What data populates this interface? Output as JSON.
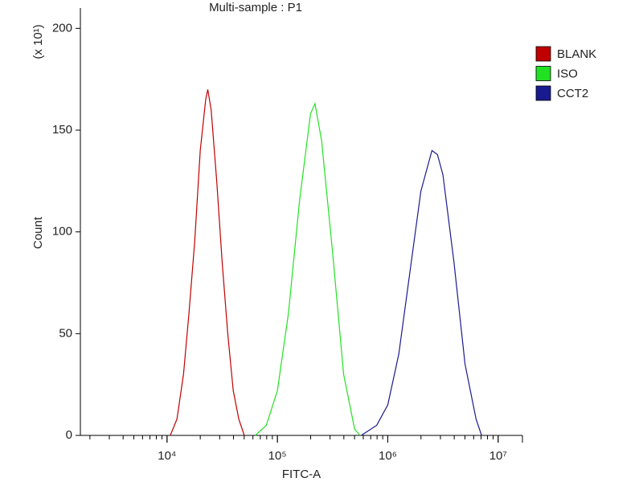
{
  "chart_data": {
    "type": "line",
    "title": "Multi-sample : P1",
    "x_label": "FITC-A",
    "y_label": "Count",
    "y_multiplier": "(x 10¹)",
    "x_log": true,
    "minor_ticks": true,
    "legend": "right",
    "xlim": [
      1640,
      16600000
    ],
    "xticks": [
      {
        "value": 10000,
        "label": "10⁴"
      },
      {
        "value": 100000,
        "label": "10⁵"
      },
      {
        "value": 1000000,
        "label": "10⁶"
      },
      {
        "value": 10000000,
        "label": "10⁷"
      }
    ],
    "ylim": [
      0,
      210
    ],
    "yticks": [
      0,
      50,
      100,
      150,
      200
    ],
    "series": [
      {
        "name": "BLANK",
        "color": "#c00000",
        "x": [
          10700,
          12300,
          14100,
          15800,
          17800,
          20000,
          22400,
          23400,
          25100,
          28200,
          31600,
          35500,
          39800,
          44700,
          50100
        ],
        "values": [
          0,
          8,
          30,
          60,
          95,
          140,
          165,
          170,
          160,
          125,
          85,
          50,
          22,
          8,
          0
        ]
      },
      {
        "name": "ISO",
        "color": "#22e022",
        "x": [
          63100,
          79400,
          100000,
          125900,
          158500,
          199500,
          218800,
          251200,
          316200,
          398100,
          501200,
          562300
        ],
        "values": [
          0,
          5,
          22,
          60,
          115,
          158,
          163,
          145,
          90,
          30,
          3,
          0
        ]
      },
      {
        "name": "CCT2",
        "color": "#1a1a90",
        "x": [
          575000,
          794300,
          1000000,
          1259000,
          1585000,
          1995000,
          2512000,
          2818000,
          3162000,
          3981000,
          5012000,
          6310000,
          7079000
        ],
        "values": [
          0,
          5,
          15,
          40,
          80,
          120,
          140,
          138,
          128,
          85,
          35,
          8,
          0
        ]
      }
    ]
  }
}
